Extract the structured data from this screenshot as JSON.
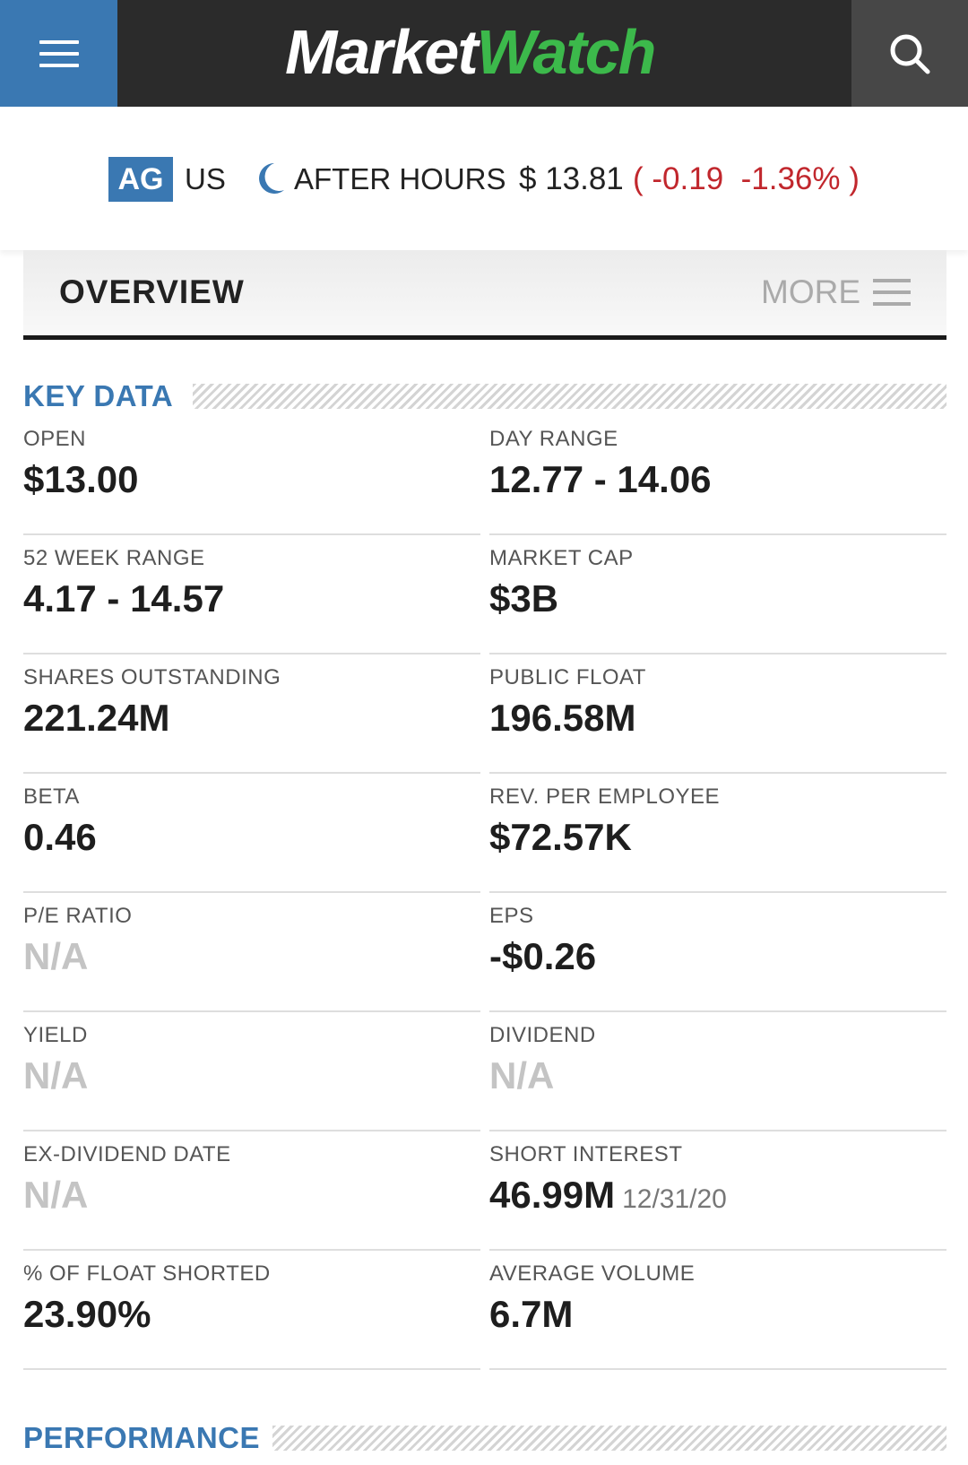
{
  "header": {
    "logo_market": "Market",
    "logo_watch": "Watch"
  },
  "quote": {
    "ticker": "AG",
    "exchange": "US",
    "session": "AFTER HOURS",
    "price": "$ 13.81",
    "change": "( -0.19  -1.36% )"
  },
  "tabs": {
    "overview": "OVERVIEW",
    "more": "MORE"
  },
  "sections": {
    "key_data": "KEY DATA",
    "performance": "PERFORMANCE"
  },
  "key_data": [
    {
      "label": "OPEN",
      "value": "$13.00"
    },
    {
      "label": "DAY RANGE",
      "value": "12.77 - 14.06"
    },
    {
      "label": "52 WEEK RANGE",
      "value": "4.17 - 14.57"
    },
    {
      "label": "MARKET CAP",
      "value": "$3B"
    },
    {
      "label": "SHARES OUTSTANDING",
      "value": "221.24M"
    },
    {
      "label": "PUBLIC FLOAT",
      "value": "196.58M"
    },
    {
      "label": "BETA",
      "value": "0.46"
    },
    {
      "label": "REV. PER EMPLOYEE",
      "value": "$72.57K"
    },
    {
      "label": "P/E RATIO",
      "value": "N/A"
    },
    {
      "label": "EPS",
      "value": "-$0.26"
    },
    {
      "label": "YIELD",
      "value": "N/A"
    },
    {
      "label": "DIVIDEND",
      "value": "N/A"
    },
    {
      "label": "EX-DIVIDEND DATE",
      "value": "N/A"
    },
    {
      "label": "SHORT INTEREST",
      "value": "46.99M",
      "date": "12/31/20"
    },
    {
      "label": "% OF FLOAT SHORTED",
      "value": "23.90%"
    },
    {
      "label": "AVERAGE VOLUME",
      "value": "6.7M"
    }
  ],
  "colors": {
    "brand_blue": "#3a78b2",
    "brand_green": "#3cb94b",
    "negative_red": "#c1272d",
    "header_dark": "#2b2b2b"
  }
}
